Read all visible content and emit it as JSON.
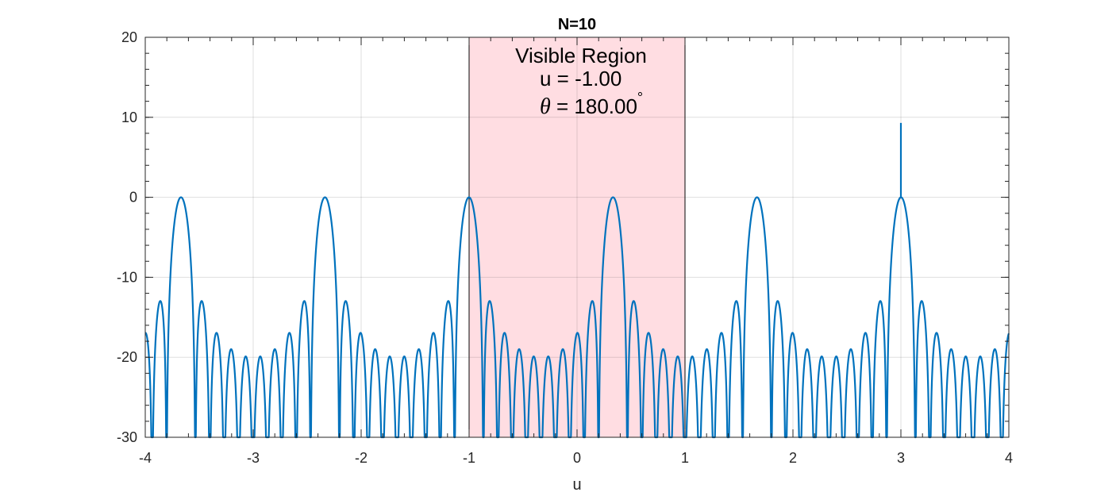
{
  "chart_data": {
    "type": "line",
    "title": "N=10",
    "xlabel": "u",
    "ylabel": "",
    "xlim": [
      -4,
      4
    ],
    "ylim": [
      -30,
      20
    ],
    "xticks": [
      -4,
      -3,
      -2,
      -1,
      0,
      1,
      2,
      3,
      4
    ],
    "xtick_labels": [
      "-4",
      "-3",
      "-2",
      "-1",
      "0",
      "1",
      "2",
      "3",
      "4"
    ],
    "yticks": [
      -30,
      -20,
      -10,
      0,
      10,
      20
    ],
    "ytick_labels": [
      "-30",
      "-20",
      "-10",
      "0",
      "10",
      "20"
    ],
    "grid": true,
    "series": [
      {
        "color": "#0072BD",
        "array_elements": 10,
        "main_lobe_u": [
          -3.667,
          -2.333,
          -1.0,
          0.333,
          1.667,
          3.0
        ],
        "main_lobe_peak_db": 0,
        "first_sidelobe_db": -13,
        "sidelobe_floor_db": -20
      }
    ],
    "spike": {
      "u": 3.0,
      "y_top": 9.3,
      "y_bottom": 0
    },
    "shaded_region": {
      "x_range": [
        -1,
        1
      ],
      "fill_color": "#ffdde2",
      "edge_color": "#000000"
    },
    "annotations": {
      "region_label": "Visible Region",
      "u_text": "u = -1.00",
      "theta_symbol": "θ",
      "theta_value": " = 180.00",
      "degree_symbol": "°"
    }
  }
}
